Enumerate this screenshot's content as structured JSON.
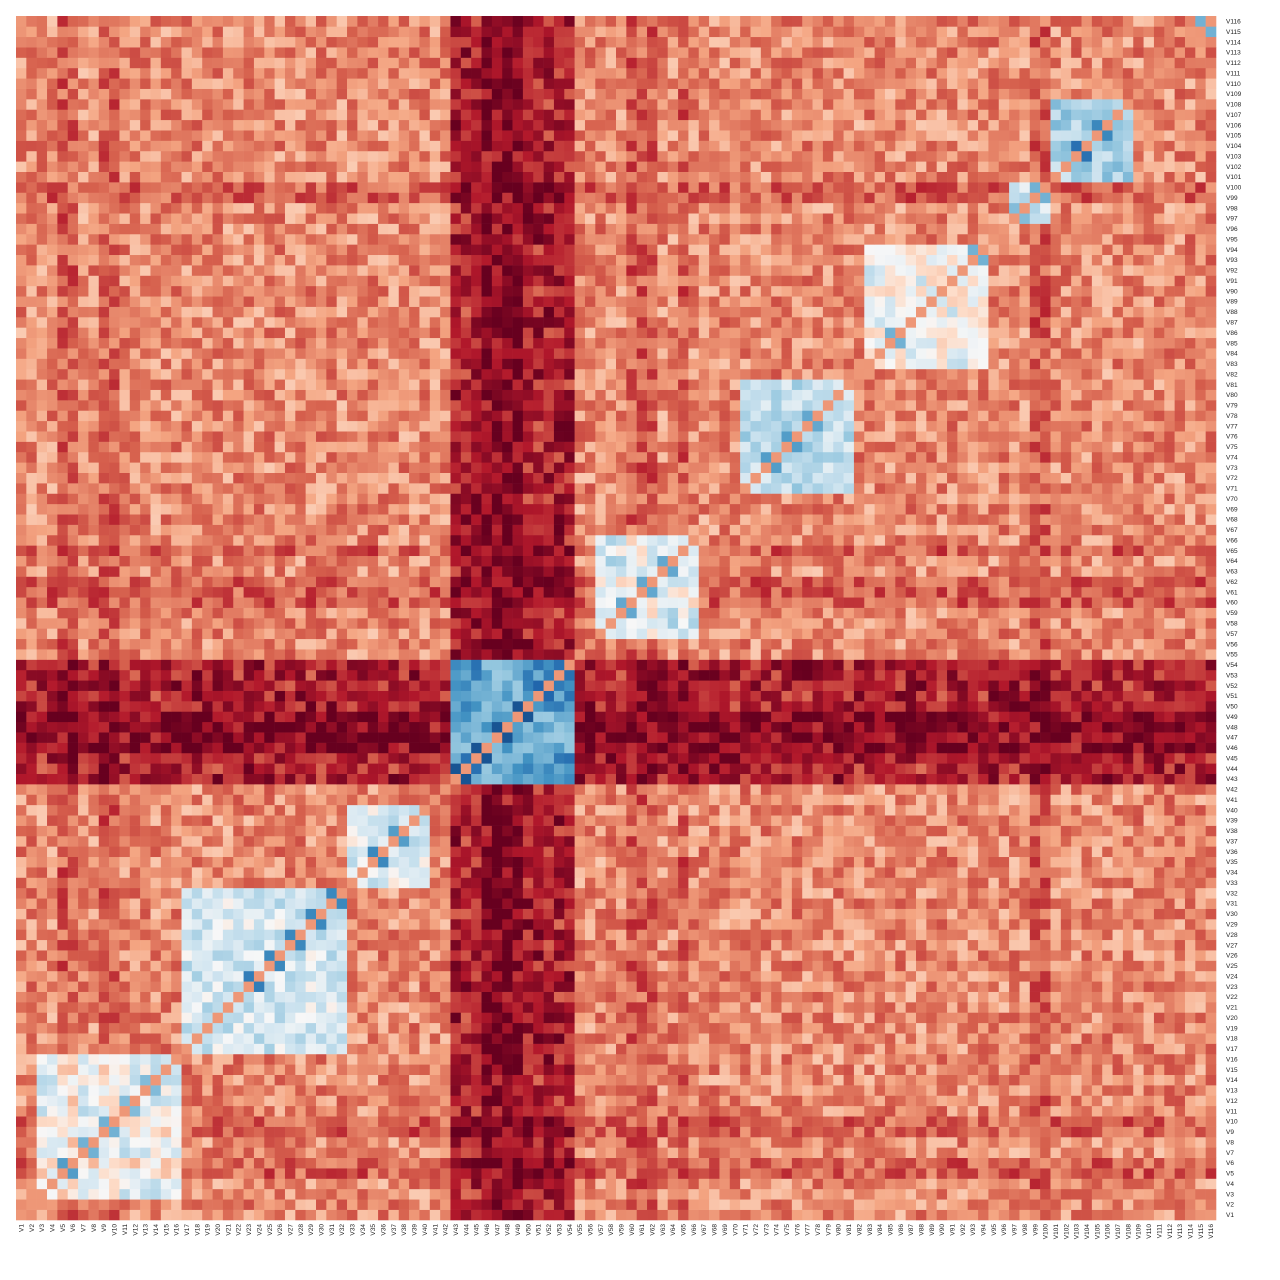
{
  "chart_data": {
    "type": "heatmap",
    "title": "",
    "xlabel": "",
    "ylabel": "",
    "n_variables": 116,
    "variable_labels": [
      "V1",
      "V2",
      "V3",
      "V4",
      "V5",
      "V6",
      "V7",
      "V8",
      "V9",
      "V10",
      "V11",
      "V12",
      "V13",
      "V14",
      "V15",
      "V16",
      "V17",
      "V18",
      "V19",
      "V20",
      "V21",
      "V22",
      "V23",
      "V24",
      "V25",
      "V26",
      "V27",
      "V28",
      "V29",
      "V30",
      "V31",
      "V32",
      "V33",
      "V34",
      "V35",
      "V36",
      "V37",
      "V38",
      "V39",
      "V40",
      "V41",
      "V42",
      "V43",
      "V44",
      "V45",
      "V46",
      "V47",
      "V48",
      "V49",
      "V50",
      "V51",
      "V52",
      "V53",
      "V54",
      "V55",
      "V56",
      "V57",
      "V58",
      "V59",
      "V60",
      "V61",
      "V62",
      "V63",
      "V64",
      "V65",
      "V66",
      "V67",
      "V68",
      "V69",
      "V70",
      "V71",
      "V72",
      "V73",
      "V74",
      "V75",
      "V76",
      "V77",
      "V78",
      "V79",
      "V80",
      "V81",
      "V82",
      "V83",
      "V84",
      "V85",
      "V86",
      "V87",
      "V88",
      "V89",
      "V90",
      "V91",
      "V92",
      "V93",
      "V94",
      "V95",
      "V96",
      "V97",
      "V98",
      "V99",
      "V100",
      "V101",
      "V102",
      "V103",
      "V104",
      "V105",
      "V106",
      "V107",
      "V108",
      "V109",
      "V110",
      "V111",
      "V112",
      "V113",
      "V114",
      "V115",
      "V116"
    ],
    "x_order": "V1 to V116 left to right",
    "y_order": "V1 at bottom to V116 at top",
    "value_range": [
      -1,
      1
    ],
    "colormap": "RdBu (low = dark red, high = dark blue)",
    "colors": {
      "low": "#67001f",
      "mid": "#f7f7f7",
      "high": "#053061"
    },
    "blocks": [
      {
        "name": "deep_block",
        "members": [
          "V43",
          "V44",
          "V45",
          "V46",
          "V47",
          "V48",
          "V49",
          "V50",
          "V51",
          "V52",
          "V53",
          "V54"
        ],
        "within": 0.65,
        "note": "strong positive block (blue)"
      },
      {
        "name": "mid_block",
        "members": [
          "V97",
          "V98",
          "V99",
          "V100"
        ],
        "within": 0.3
      },
      {
        "name": "b_v101",
        "members": [
          "V101",
          "V102",
          "V103",
          "V104",
          "V105",
          "V106",
          "V107",
          "V108"
        ],
        "within": 0.3
      },
      {
        "name": "b_v72",
        "members": [
          "V71",
          "V72",
          "V73",
          "V74",
          "V75",
          "V76",
          "V77",
          "V78",
          "V79",
          "V80",
          "V81"
        ],
        "within": 0.25
      },
      {
        "name": "b_v59",
        "members": [
          "V57",
          "V58",
          "V59",
          "V60",
          "V61",
          "V62",
          "V63",
          "V64",
          "V65",
          "V66"
        ],
        "within": 0.2
      },
      {
        "name": "b_v22",
        "members": [
          "V17",
          "V18",
          "V19",
          "V20",
          "V21",
          "V22",
          "V23",
          "V24",
          "V25",
          "V26",
          "V27",
          "V28",
          "V29",
          "V30",
          "V31",
          "V32"
        ],
        "within": 0.15
      },
      {
        "name": "b_v4",
        "members": [
          "V3",
          "V4",
          "V5",
          "V6",
          "V7",
          "V8",
          "V9",
          "V10",
          "V11",
          "V12",
          "V13",
          "V14",
          "V15",
          "V16"
        ],
        "within": 0.1
      },
      {
        "name": "b_v34",
        "members": [
          "V33",
          "V34",
          "V35",
          "V36",
          "V37",
          "V38",
          "V39",
          "V40"
        ],
        "within": 0.1
      },
      {
        "name": "b_v85",
        "members": [
          "V83",
          "V84",
          "V85",
          "V86",
          "V87",
          "V88",
          "V89",
          "V90",
          "V91",
          "V92",
          "V93",
          "V94"
        ],
        "within": 0.05
      }
    ],
    "strong_pairs": [
      {
        "pair": [
          "V43",
          "V44"
        ],
        "value": 0.9
      },
      {
        "pair": [
          "V45",
          "V46"
        ],
        "value": 0.9
      },
      {
        "pair": [
          "V47",
          "V48"
        ],
        "value": 0.9
      },
      {
        "pair": [
          "V49",
          "V50"
        ],
        "value": 0.9
      },
      {
        "pair": [
          "V51",
          "V52"
        ],
        "value": 0.85
      },
      {
        "pair": [
          "V53",
          "V54"
        ],
        "value": 0.8
      },
      {
        "pair": [
          "V5",
          "V6"
        ],
        "value": 0.6
      },
      {
        "pair": [
          "V7",
          "V8"
        ],
        "value": 0.5
      },
      {
        "pair": [
          "V9",
          "V10"
        ],
        "value": 0.5
      },
      {
        "pair": [
          "V11",
          "V12"
        ],
        "value": 0.45
      },
      {
        "pair": [
          "V13",
          "V14"
        ],
        "value": 0.45
      },
      {
        "pair": [
          "V23",
          "V24"
        ],
        "value": 0.75
      },
      {
        "pair": [
          "V25",
          "V26"
        ],
        "value": 0.7
      },
      {
        "pair": [
          "V27",
          "V28"
        ],
        "value": 0.7
      },
      {
        "pair": [
          "V29",
          "V30"
        ],
        "value": 0.7
      },
      {
        "pair": [
          "V31",
          "V32"
        ],
        "value": 0.7
      },
      {
        "pair": [
          "V35",
          "V36"
        ],
        "value": 0.7
      },
      {
        "pair": [
          "V37",
          "V38"
        ],
        "value": 0.6
      },
      {
        "pair": [
          "V59",
          "V60"
        ],
        "value": 0.55
      },
      {
        "pair": [
          "V61",
          "V62"
        ],
        "value": 0.55
      },
      {
        "pair": [
          "V63",
          "V64"
        ],
        "value": 0.55
      },
      {
        "pair": [
          "V73",
          "V74"
        ],
        "value": 0.6
      },
      {
        "pair": [
          "V75",
          "V76"
        ],
        "value": 0.6
      },
      {
        "pair": [
          "V77",
          "V78"
        ],
        "value": 0.55
      },
      {
        "pair": [
          "V85",
          "V86"
        ],
        "value": 0.5
      },
      {
        "pair": [
          "V93",
          "V94"
        ],
        "value": 0.5
      },
      {
        "pair": [
          "V99",
          "V100"
        ],
        "value": 0.5
      },
      {
        "pair": [
          "V103",
          "V104"
        ],
        "value": 0.8
      },
      {
        "pair": [
          "V105",
          "V106"
        ],
        "value": 0.7
      },
      {
        "pair": [
          "V115",
          "V116"
        ],
        "value": 0.5
      }
    ],
    "background_mean": -0.35,
    "noise": 0.22,
    "deep_block_vs_others": -0.75,
    "strong_negative_rows": [
      "V5",
      "V6",
      "V9",
      "V10",
      "V46",
      "V47",
      "V48",
      "V49",
      "V60",
      "V61",
      "V62",
      "V65",
      "V99",
      "V100"
    ],
    "diagonal": "V1-V1 through V116-V116",
    "legend": "none",
    "grid": false
  }
}
